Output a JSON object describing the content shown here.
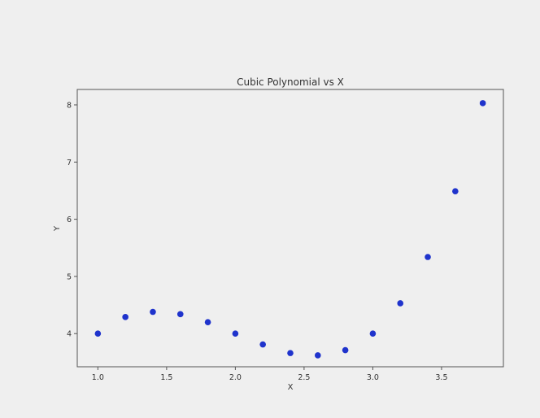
{
  "chart_data": {
    "type": "scatter",
    "title": "Cubic Polynomial vs X",
    "xlabel": "X",
    "ylabel": "Y",
    "xlim": [
      0.85,
      3.95
    ],
    "ylim": [
      3.42,
      8.27
    ],
    "xticks": [
      1.0,
      1.5,
      2.0,
      2.5,
      3.0,
      3.5
    ],
    "xtick_labels": [
      "1.0",
      "1.5",
      "2.0",
      "2.5",
      "3.0",
      "3.5"
    ],
    "yticks": [
      4,
      5,
      6,
      7,
      8
    ],
    "ytick_labels": [
      "4",
      "5",
      "6",
      "7",
      "8"
    ],
    "grid": false,
    "marker_color": "#1f33cc",
    "points": [
      {
        "x": 1.0,
        "y": 4.0
      },
      {
        "x": 1.2,
        "y": 4.29
      },
      {
        "x": 1.4,
        "y": 4.38
      },
      {
        "x": 1.6,
        "y": 4.34
      },
      {
        "x": 1.8,
        "y": 4.2
      },
      {
        "x": 2.0,
        "y": 4.0
      },
      {
        "x": 2.2,
        "y": 3.81
      },
      {
        "x": 2.4,
        "y": 3.66
      },
      {
        "x": 2.6,
        "y": 3.62
      },
      {
        "x": 2.8,
        "y": 3.71
      },
      {
        "x": 3.0,
        "y": 4.0
      },
      {
        "x": 3.2,
        "y": 4.53
      },
      {
        "x": 3.4,
        "y": 5.34
      },
      {
        "x": 3.6,
        "y": 6.49
      },
      {
        "x": 3.8,
        "y": 8.03
      }
    ]
  }
}
